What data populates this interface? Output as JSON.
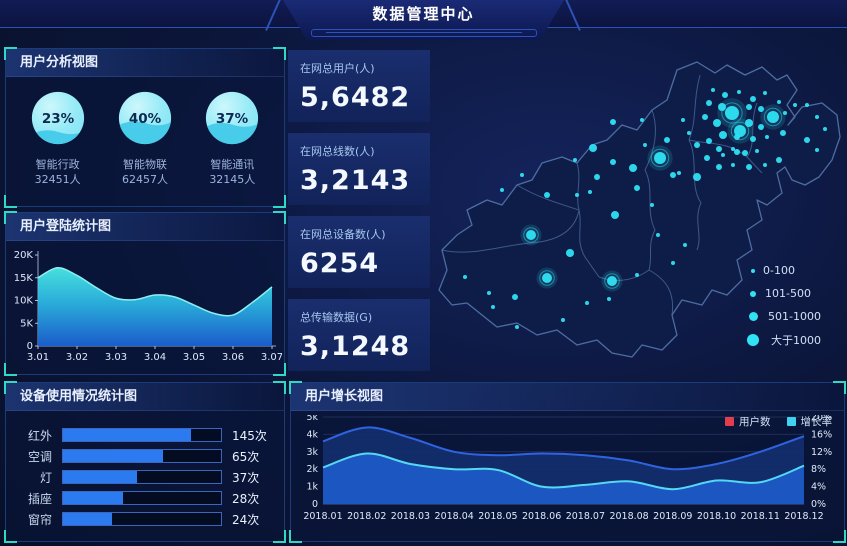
{
  "header": {
    "title": "数据管理中心"
  },
  "panels": {
    "user_analysis": {
      "title": "用户分析视图",
      "gauges": [
        {
          "percent": "23%",
          "label": "智能行政",
          "count": "32451人"
        },
        {
          "percent": "40%",
          "label": "智能物联",
          "count": "62457人"
        },
        {
          "percent": "37%",
          "label": "智能通讯",
          "count": "32145人"
        }
      ]
    },
    "login_stats": {
      "title": "用户登陆统计图"
    },
    "device_usage": {
      "title": "设备使用情况统计图"
    },
    "growth": {
      "title": "用户增长视图",
      "legend": [
        {
          "label": "用户数",
          "color": "#e23c4e"
        },
        {
          "label": "增长率",
          "color": "#3fd3f0"
        }
      ]
    }
  },
  "stats": [
    {
      "label": "在网总用户(人)",
      "value": "5,6482"
    },
    {
      "label": "在网总线数(人)",
      "value": "3,2143"
    },
    {
      "label": "在网总设备数(人)",
      "value": "6254"
    },
    {
      "label": "总传输数据(G)",
      "value": "3,1248"
    }
  ],
  "map": {
    "legend": [
      {
        "label": "0-100",
        "size": 4
      },
      {
        "label": "101-500",
        "size": 6
      },
      {
        "label": "501-1000",
        "size": 9
      },
      {
        "label": "大于1000",
        "size": 12
      }
    ],
    "bubbles": [
      [
        305,
        68,
        7
      ],
      [
        313,
        86,
        6
      ],
      [
        346,
        72,
        6
      ],
      [
        233,
        113,
        6
      ],
      [
        286,
        45,
        2
      ],
      [
        298,
        50,
        3
      ],
      [
        312,
        47,
        2
      ],
      [
        326,
        54,
        3
      ],
      [
        338,
        48,
        2
      ],
      [
        352,
        57,
        2
      ],
      [
        282,
        58,
        3
      ],
      [
        295,
        62,
        4
      ],
      [
        322,
        62,
        3
      ],
      [
        334,
        64,
        3
      ],
      [
        358,
        68,
        2
      ],
      [
        368,
        60,
        2
      ],
      [
        278,
        72,
        3
      ],
      [
        290,
        78,
        4
      ],
      [
        322,
        78,
        4
      ],
      [
        334,
        82,
        3
      ],
      [
        296,
        90,
        4
      ],
      [
        310,
        92,
        3
      ],
      [
        326,
        94,
        3
      ],
      [
        340,
        92,
        2
      ],
      [
        282,
        96,
        3
      ],
      [
        292,
        104,
        3
      ],
      [
        306,
        104,
        2
      ],
      [
        318,
        108,
        3
      ],
      [
        330,
        106,
        2
      ],
      [
        356,
        88,
        3
      ],
      [
        380,
        60,
        2
      ],
      [
        390,
        72,
        2
      ],
      [
        398,
        84,
        2
      ],
      [
        380,
        95,
        3
      ],
      [
        390,
        105,
        2
      ],
      [
        352,
        115,
        3
      ],
      [
        338,
        120,
        2
      ],
      [
        322,
        122,
        3
      ],
      [
        306,
        120,
        2
      ],
      [
        292,
        122,
        3
      ],
      [
        270,
        100,
        3
      ],
      [
        262,
        88,
        2
      ],
      [
        256,
        75,
        2
      ],
      [
        296,
        110,
        2
      ],
      [
        310,
        107,
        3
      ],
      [
        280,
        113,
        3
      ],
      [
        186,
        77,
        3
      ],
      [
        215,
        75,
        2
      ],
      [
        166,
        103,
        4
      ],
      [
        148,
        115,
        2
      ],
      [
        186,
        117,
        3
      ],
      [
        206,
        123,
        4
      ],
      [
        170,
        132,
        3
      ],
      [
        163,
        147,
        2
      ],
      [
        210,
        143,
        3
      ],
      [
        246,
        130,
        3
      ],
      [
        270,
        132,
        4
      ],
      [
        240,
        95,
        3
      ],
      [
        252,
        128,
        2
      ],
      [
        218,
        100,
        2
      ],
      [
        120,
        150,
        3
      ],
      [
        95,
        130,
        2
      ],
      [
        75,
        145,
        2
      ],
      [
        150,
        150,
        2
      ],
      [
        104,
        190,
        5
      ],
      [
        143,
        208,
        4
      ],
      [
        188,
        170,
        4
      ],
      [
        185,
        236,
        5
      ],
      [
        120,
        233,
        5
      ],
      [
        88,
        252,
        3
      ],
      [
        62,
        248,
        2
      ],
      [
        38,
        232,
        2
      ],
      [
        66,
        262,
        2
      ],
      [
        90,
        282,
        2
      ],
      [
        136,
        275,
        2
      ],
      [
        160,
        258,
        2
      ],
      [
        182,
        254,
        2
      ],
      [
        210,
        230,
        2
      ],
      [
        231,
        190,
        2
      ],
      [
        246,
        218,
        2
      ],
      [
        258,
        200,
        2
      ],
      [
        225,
        160,
        2
      ]
    ]
  },
  "chart_data": [
    {
      "type": "area",
      "id": "login",
      "title": "用户登陆统计图",
      "x_ticks": [
        "3.01",
        "3.02",
        "3.03",
        "3.04",
        "3.05",
        "3.06",
        "3.07"
      ],
      "y_ticks": [
        "0",
        "5K",
        "10K",
        "15K",
        "20K"
      ],
      "ylim_k": [
        0,
        20
      ],
      "values_k": [
        15,
        17.2,
        15.5,
        12.8,
        10.5,
        10.2,
        11.2,
        10.8,
        9,
        7.2,
        6.8,
        9.6,
        13
      ],
      "legend_position": "none",
      "grid": false
    },
    {
      "type": "bar",
      "id": "device",
      "title": "设备使用情况统计图",
      "orientation": "horizontal",
      "categories": [
        "红外",
        "空调",
        "灯",
        "插座",
        "窗帘"
      ],
      "values": [
        145,
        65,
        37,
        28,
        24
      ],
      "unit": "次",
      "value_labels": [
        "145次",
        "65次",
        "37次",
        "28次",
        "24次"
      ],
      "fill_pct": [
        81,
        63,
        47,
        38,
        31
      ],
      "grid": false
    },
    {
      "type": "area",
      "id": "growth",
      "title": "用户增长视图",
      "categories": [
        "2018.01",
        "2018.02",
        "2018.03",
        "2018.04",
        "2018.05",
        "2018.06",
        "2018.07",
        "2018.08",
        "2018.09",
        "2018.10",
        "2018.11",
        "2018.12"
      ],
      "left_y_ticks": [
        "0",
        "1k",
        "2k",
        "3k",
        "4k",
        "5k"
      ],
      "right_y_ticks": [
        "0%",
        "4%",
        "8%",
        "12%",
        "16%",
        "20%"
      ],
      "left_ylim_k": [
        0,
        5
      ],
      "right_ylim_pct": [
        0,
        20
      ],
      "grid": true,
      "legend_position": "top-right",
      "series": [
        {
          "name": "用户数",
          "axis": "left",
          "line_color": "#2f63e0",
          "fill_color": "rgba(18,48,110,0.88)",
          "values_k": [
            3.6,
            4.4,
            3.8,
            3.0,
            2.8,
            2.9,
            2.8,
            2.5,
            2.0,
            2.3,
            3.0,
            3.9
          ]
        },
        {
          "name": "增长率",
          "axis": "right",
          "line_color": "#55d8f5",
          "fill_color": "rgba(29,90,200,0.92)",
          "values_pct": [
            8.4,
            11.6,
            9.2,
            8.0,
            7.8,
            4.0,
            4.4,
            5.2,
            3.4,
            5.4,
            5.0,
            8.8
          ]
        }
      ]
    }
  ],
  "colors": {
    "accent_cyan": "#35e2f2",
    "bracket_teal": "#2fd9c4",
    "bar_blue": "#2b7af0",
    "legend_red": "#e23c4e",
    "legend_cyan": "#3fd3f0",
    "gauge_body": "#97ebf7",
    "gauge_water": "#3fc9e9",
    "background": "#0a1434"
  }
}
